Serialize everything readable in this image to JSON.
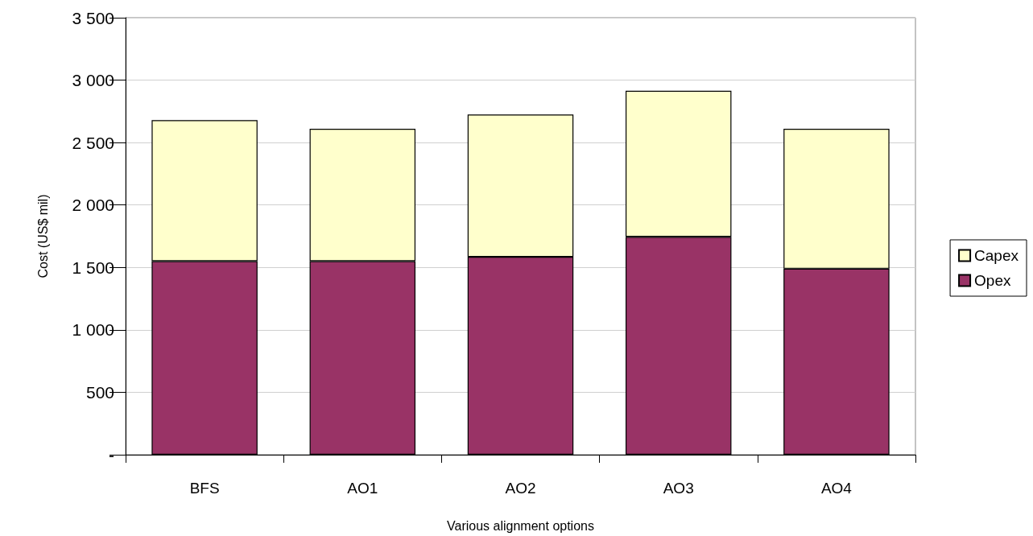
{
  "chart_data": {
    "type": "bar",
    "stacked": true,
    "xlabel": "Various alignment options",
    "ylabel": "Cost (US$ mil)",
    "categories": [
      "BFS",
      "AO1",
      "AO2",
      "AO3",
      "AO4"
    ],
    "series": [
      {
        "name": "Opex",
        "color": "#993366",
        "values": [
          1550,
          1550,
          1585,
          1745,
          1490
        ]
      },
      {
        "name": "Capex",
        "color": "#ffffcc",
        "values": [
          1130,
          1060,
          1140,
          1170,
          1120
        ]
      }
    ],
    "ylim": [
      0,
      3500
    ],
    "yticks": [
      {
        "value": 0,
        "label": "-"
      },
      500,
      {
        "value": 1000,
        "label": "1 000"
      },
      {
        "value": 1500,
        "label": "1 500"
      },
      {
        "value": 2000,
        "label": "2 000"
      },
      {
        "value": 2500,
        "label": "2 500"
      },
      {
        "value": 3000,
        "label": "3 000"
      },
      {
        "value": 3500,
        "label": "3 500"
      }
    ],
    "grid": "y",
    "legend": "right"
  }
}
